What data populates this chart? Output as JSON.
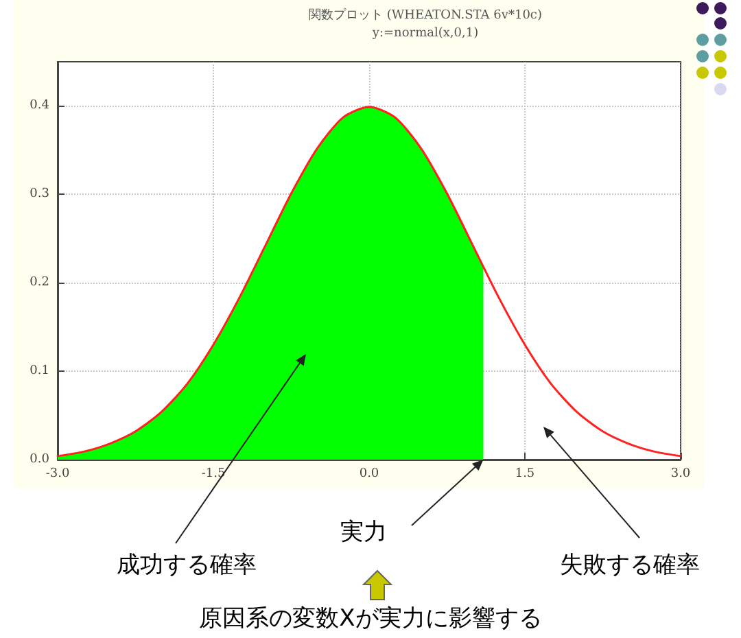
{
  "chart_data": {
    "type": "line",
    "title": "関数プロット (WHEATON.STA 6v*10c)",
    "subtitle": "y:=normal(x,0,1)",
    "series": [
      {
        "type": "area",
        "color": "#00ff00",
        "x": [
          -3,
          -2.75,
          -2.5,
          -2.25,
          -2,
          -1.75,
          -1.5,
          -1.25,
          -1,
          -0.75,
          -0.5,
          -0.25,
          0,
          0.25,
          0.5,
          0.75,
          1,
          1.1
        ],
        "values": [
          0.004,
          0.009,
          0.018,
          0.032,
          0.054,
          0.086,
          0.13,
          0.183,
          0.242,
          0.301,
          0.352,
          0.387,
          0.399,
          0.387,
          0.352,
          0.301,
          0.242,
          0.218
        ]
      },
      {
        "type": "line",
        "color": "#ff2020",
        "x": [
          -3,
          -2.75,
          -2.5,
          -2.25,
          -2,
          -1.75,
          -1.5,
          -1.25,
          -1,
          -0.75,
          -0.5,
          -0.25,
          0,
          0.25,
          0.5,
          0.75,
          1,
          1.25,
          1.5,
          1.75,
          2,
          2.25,
          2.5,
          2.75,
          3
        ],
        "values": [
          0.004,
          0.009,
          0.018,
          0.032,
          0.054,
          0.086,
          0.13,
          0.183,
          0.242,
          0.301,
          0.352,
          0.387,
          0.399,
          0.387,
          0.352,
          0.301,
          0.242,
          0.183,
          0.13,
          0.086,
          0.054,
          0.032,
          0.018,
          0.009,
          0.004
        ]
      }
    ],
    "xlim": [
      -3,
      3
    ],
    "xticks": [
      {
        "value": -3,
        "label": "-3.0"
      },
      {
        "value": -1.5,
        "label": "-1.5"
      },
      {
        "value": 0,
        "label": "0.0"
      },
      {
        "value": 1.5,
        "label": "1.5"
      },
      {
        "value": 3,
        "label": "3.0"
      }
    ],
    "ylim": [
      0,
      0.45
    ],
    "yticks": [
      {
        "value": 0,
        "label": "0.0"
      },
      {
        "value": 0.1,
        "label": "0.1"
      },
      {
        "value": 0.2,
        "label": "0.2"
      },
      {
        "value": 0.3,
        "label": "0.3"
      },
      {
        "value": 0.4,
        "label": "0.4"
      }
    ],
    "grid": true,
    "marker": "none",
    "line_style": "solid",
    "annotations": [
      "成功する確率",
      {
        "text": "実力",
        "x": 1.1,
        "y": 0
      },
      "失敗する確率",
      "原因系の変数Xが実力に影響する"
    ]
  }
}
